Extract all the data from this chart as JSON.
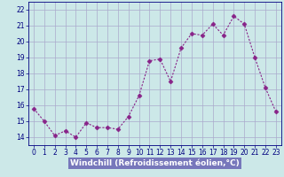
{
  "x": [
    0,
    1,
    2,
    3,
    4,
    5,
    6,
    7,
    8,
    9,
    10,
    11,
    12,
    13,
    14,
    15,
    16,
    17,
    18,
    19,
    20,
    21,
    22,
    23
  ],
  "y": [
    15.8,
    15.0,
    14.1,
    14.4,
    14.0,
    14.9,
    14.6,
    14.6,
    14.5,
    15.3,
    16.6,
    18.8,
    18.9,
    17.5,
    19.6,
    20.5,
    20.4,
    21.1,
    20.4,
    21.6,
    21.1,
    19.0,
    17.1,
    15.6
  ],
  "line_color": "#882288",
  "marker": "D",
  "marker_size": 2.5,
  "bg_color": "#cce8e8",
  "grid_color": "#aaaacc",
  "xlabel": "Windchill (Refroidissement éolien,°C)",
  "xlabel_color": "#ffffff",
  "xlabel_bg": "#7777bb",
  "ylim": [
    13.5,
    22.5
  ],
  "yticks": [
    14,
    15,
    16,
    17,
    18,
    19,
    20,
    21,
    22
  ],
  "xlim": [
    -0.5,
    23.5
  ],
  "xticks": [
    0,
    1,
    2,
    3,
    4,
    5,
    6,
    7,
    8,
    9,
    10,
    11,
    12,
    13,
    14,
    15,
    16,
    17,
    18,
    19,
    20,
    21,
    22,
    23
  ],
  "tick_label_fontsize": 5.5,
  "xlabel_fontsize": 6.5,
  "axis_color": "#000080",
  "linewidth": 0.8
}
